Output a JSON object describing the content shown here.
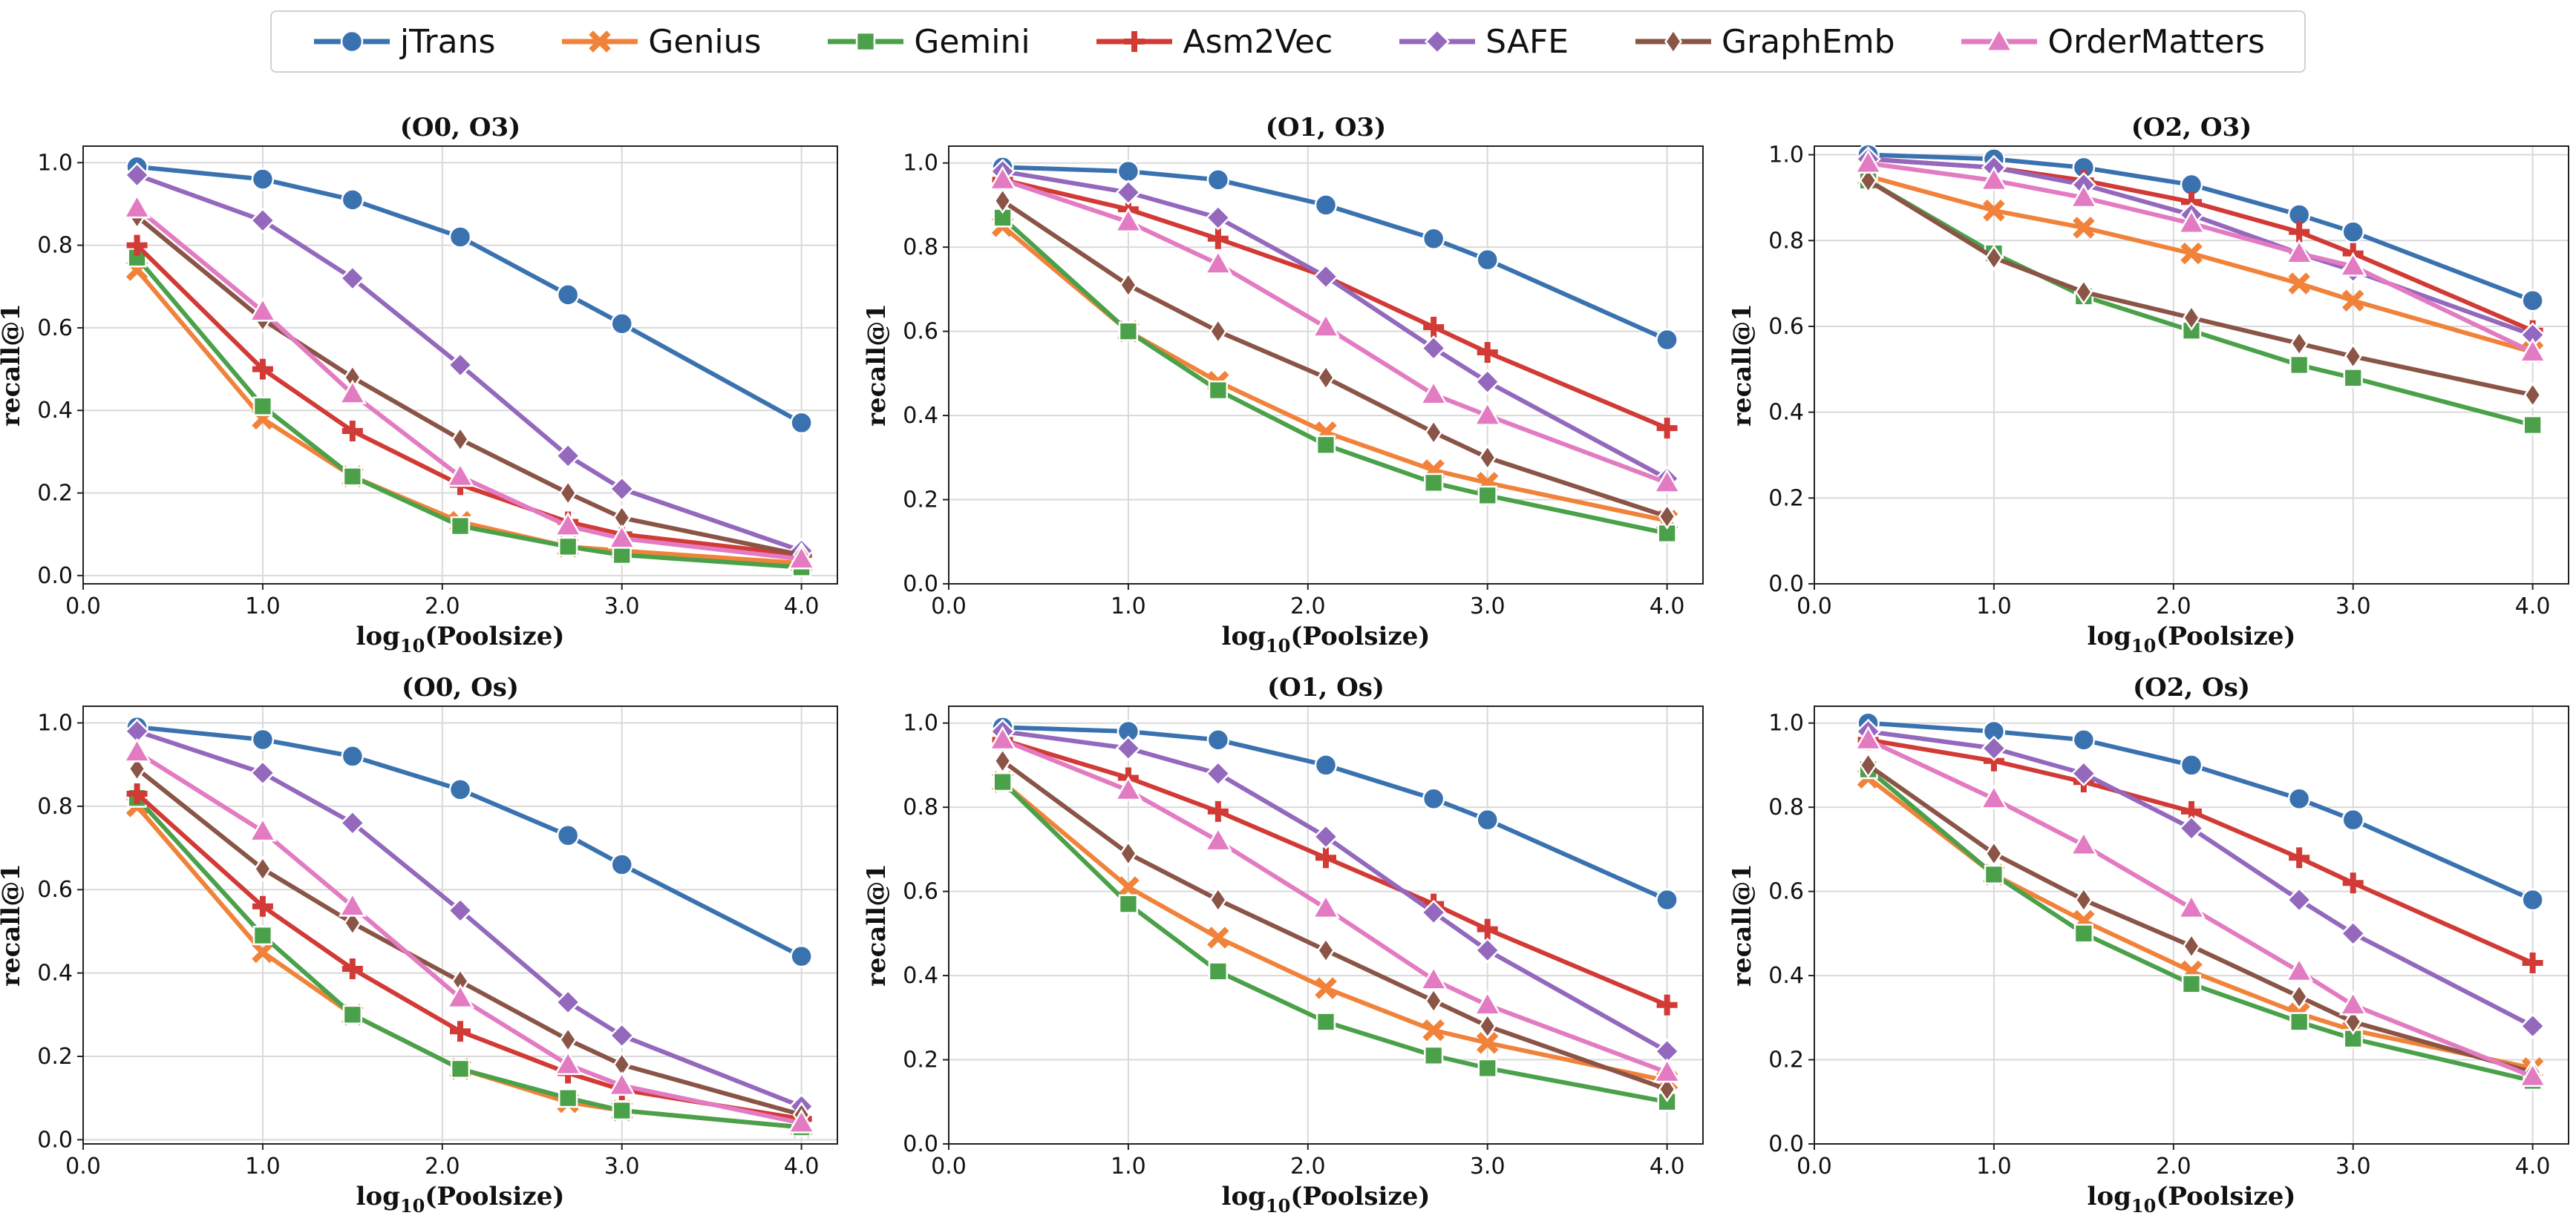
{
  "colors": {
    "jTrans": "#3a72b0",
    "Genius": "#f0823a",
    "Gemini": "#4aa14a",
    "Asm2Vec": "#d23a36",
    "SAFE": "#9468bd",
    "GraphEmb": "#8a5446",
    "OrderMatters": "#e37bc2"
  },
  "legend": [
    {
      "name": "jTrans",
      "marker": "circle"
    },
    {
      "name": "Genius",
      "marker": "x"
    },
    {
      "name": "Gemini",
      "marker": "square"
    },
    {
      "name": "Asm2Vec",
      "marker": "plus"
    },
    {
      "name": "SAFE",
      "marker": "diamond"
    },
    {
      "name": "GraphEmb",
      "marker": "thin_diamond"
    },
    {
      "name": "OrderMatters",
      "marker": "triangle"
    }
  ],
  "chart_data": [
    {
      "type": "line",
      "title": "(O0, O3)",
      "xlabel": "log10(Poolsize)",
      "ylabel": "recall@1",
      "x": [
        0.3,
        1.0,
        1.5,
        2.1,
        2.7,
        3.0,
        4.0
      ],
      "xlim": [
        0.0,
        4.2
      ],
      "ylim": [
        -0.02,
        1.04
      ],
      "xticks": [
        0.0,
        1.0,
        2.0,
        3.0,
        4.0
      ],
      "yticks": [
        0.0,
        0.2,
        0.4,
        0.6,
        0.8,
        1.0
      ],
      "grid": true,
      "series": [
        {
          "name": "jTrans",
          "values": [
            0.99,
            0.96,
            0.91,
            0.82,
            0.68,
            0.61,
            0.37
          ]
        },
        {
          "name": "Genius",
          "values": [
            0.74,
            0.38,
            0.24,
            0.13,
            0.07,
            0.06,
            0.03
          ]
        },
        {
          "name": "Gemini",
          "values": [
            0.77,
            0.41,
            0.24,
            0.12,
            0.07,
            0.05,
            0.02
          ]
        },
        {
          "name": "Asm2Vec",
          "values": [
            0.8,
            0.5,
            0.35,
            0.22,
            0.13,
            0.1,
            0.05
          ]
        },
        {
          "name": "SAFE",
          "values": [
            0.97,
            0.86,
            0.72,
            0.51,
            0.29,
            0.21,
            0.06
          ]
        },
        {
          "name": "GraphEmb",
          "values": [
            0.87,
            0.62,
            0.48,
            0.33,
            0.2,
            0.14,
            0.05
          ]
        },
        {
          "name": "OrderMatters",
          "values": [
            0.89,
            0.64,
            0.44,
            0.24,
            0.12,
            0.09,
            0.04
          ]
        }
      ]
    },
    {
      "type": "line",
      "title": "(O1, O3)",
      "xlabel": "log10(Poolsize)",
      "ylabel": "recall@1",
      "x": [
        0.3,
        1.0,
        1.5,
        2.1,
        2.7,
        3.0,
        4.0
      ],
      "xlim": [
        0.0,
        4.2
      ],
      "ylim": [
        0.0,
        1.04
      ],
      "xticks": [
        0.0,
        1.0,
        2.0,
        3.0,
        4.0
      ],
      "yticks": [
        0.0,
        0.2,
        0.4,
        0.6,
        0.8,
        1.0
      ],
      "grid": true,
      "series": [
        {
          "name": "jTrans",
          "values": [
            0.99,
            0.98,
            0.96,
            0.9,
            0.82,
            0.77,
            0.58
          ]
        },
        {
          "name": "Genius",
          "values": [
            0.85,
            0.6,
            0.48,
            0.36,
            0.27,
            0.24,
            0.15
          ]
        },
        {
          "name": "Gemini",
          "values": [
            0.87,
            0.6,
            0.46,
            0.33,
            0.24,
            0.21,
            0.12
          ]
        },
        {
          "name": "Asm2Vec",
          "values": [
            0.96,
            0.89,
            0.82,
            0.73,
            0.61,
            0.55,
            0.37
          ]
        },
        {
          "name": "SAFE",
          "values": [
            0.98,
            0.93,
            0.87,
            0.73,
            0.56,
            0.48,
            0.25
          ]
        },
        {
          "name": "GraphEmb",
          "values": [
            0.91,
            0.71,
            0.6,
            0.49,
            0.36,
            0.3,
            0.16
          ]
        },
        {
          "name": "OrderMatters",
          "values": [
            0.96,
            0.86,
            0.76,
            0.61,
            0.45,
            0.4,
            0.24
          ]
        }
      ]
    },
    {
      "type": "line",
      "title": "(O2, O3)",
      "xlabel": "log10(Poolsize)",
      "ylabel": "recall@1",
      "x": [
        0.3,
        1.0,
        1.5,
        2.1,
        2.7,
        3.0,
        4.0
      ],
      "xlim": [
        0.0,
        4.2
      ],
      "ylim": [
        0.0,
        1.02
      ],
      "xticks": [
        0.0,
        1.0,
        2.0,
        3.0,
        4.0
      ],
      "yticks": [
        0.0,
        0.2,
        0.4,
        0.6,
        0.8,
        1.0
      ],
      "grid": true,
      "series": [
        {
          "name": "jTrans",
          "values": [
            1.0,
            0.99,
            0.97,
            0.93,
            0.86,
            0.82,
            0.66
          ]
        },
        {
          "name": "Genius",
          "values": [
            0.95,
            0.87,
            0.83,
            0.77,
            0.7,
            0.66,
            0.54
          ]
        },
        {
          "name": "Gemini",
          "values": [
            0.94,
            0.77,
            0.67,
            0.59,
            0.51,
            0.48,
            0.37
          ]
        },
        {
          "name": "Asm2Vec",
          "values": [
            0.99,
            0.97,
            0.94,
            0.89,
            0.82,
            0.77,
            0.59
          ]
        },
        {
          "name": "SAFE",
          "values": [
            0.99,
            0.97,
            0.93,
            0.86,
            0.77,
            0.73,
            0.58
          ]
        },
        {
          "name": "GraphEmb",
          "values": [
            0.94,
            0.76,
            0.68,
            0.62,
            0.56,
            0.53,
            0.44
          ]
        },
        {
          "name": "OrderMatters",
          "values": [
            0.98,
            0.94,
            0.9,
            0.84,
            0.77,
            0.74,
            0.54
          ]
        }
      ]
    },
    {
      "type": "line",
      "title": "(O0, Os)",
      "xlabel": "log10(Poolsize)",
      "ylabel": "recall@1",
      "x": [
        0.3,
        1.0,
        1.5,
        2.1,
        2.7,
        3.0,
        4.0
      ],
      "xlim": [
        0.0,
        4.2
      ],
      "ylim": [
        -0.01,
        1.04
      ],
      "xticks": [
        0.0,
        1.0,
        2.0,
        3.0,
        4.0
      ],
      "yticks": [
        0.0,
        0.2,
        0.4,
        0.6,
        0.8,
        1.0
      ],
      "grid": true,
      "series": [
        {
          "name": "jTrans",
          "values": [
            0.99,
            0.96,
            0.92,
            0.84,
            0.73,
            0.66,
            0.44
          ]
        },
        {
          "name": "Genius",
          "values": [
            0.8,
            0.45,
            0.3,
            0.17,
            0.09,
            0.07,
            0.03
          ]
        },
        {
          "name": "Gemini",
          "values": [
            0.82,
            0.49,
            0.3,
            0.17,
            0.1,
            0.07,
            0.03
          ]
        },
        {
          "name": "Asm2Vec",
          "values": [
            0.83,
            0.56,
            0.41,
            0.26,
            0.16,
            0.12,
            0.05
          ]
        },
        {
          "name": "SAFE",
          "values": [
            0.98,
            0.88,
            0.76,
            0.55,
            0.33,
            0.25,
            0.08
          ]
        },
        {
          "name": "GraphEmb",
          "values": [
            0.89,
            0.65,
            0.52,
            0.38,
            0.24,
            0.18,
            0.06
          ]
        },
        {
          "name": "OrderMatters",
          "values": [
            0.93,
            0.74,
            0.56,
            0.34,
            0.18,
            0.13,
            0.04
          ]
        }
      ]
    },
    {
      "type": "line",
      "title": "(O1, Os)",
      "xlabel": "log10(Poolsize)",
      "ylabel": "recall@1",
      "x": [
        0.3,
        1.0,
        1.5,
        2.1,
        2.7,
        3.0,
        4.0
      ],
      "xlim": [
        0.0,
        4.2
      ],
      "ylim": [
        0.0,
        1.04
      ],
      "xticks": [
        0.0,
        1.0,
        2.0,
        3.0,
        4.0
      ],
      "yticks": [
        0.0,
        0.2,
        0.4,
        0.6,
        0.8,
        1.0
      ],
      "grid": true,
      "series": [
        {
          "name": "jTrans",
          "values": [
            0.99,
            0.98,
            0.96,
            0.9,
            0.82,
            0.77,
            0.58
          ]
        },
        {
          "name": "Genius",
          "values": [
            0.86,
            0.61,
            0.49,
            0.37,
            0.27,
            0.24,
            0.15
          ]
        },
        {
          "name": "Gemini",
          "values": [
            0.86,
            0.57,
            0.41,
            0.29,
            0.21,
            0.18,
            0.1
          ]
        },
        {
          "name": "Asm2Vec",
          "values": [
            0.96,
            0.87,
            0.79,
            0.68,
            0.57,
            0.51,
            0.33
          ]
        },
        {
          "name": "SAFE",
          "values": [
            0.98,
            0.94,
            0.88,
            0.73,
            0.55,
            0.46,
            0.22
          ]
        },
        {
          "name": "GraphEmb",
          "values": [
            0.91,
            0.69,
            0.58,
            0.46,
            0.34,
            0.28,
            0.13
          ]
        },
        {
          "name": "OrderMatters",
          "values": [
            0.96,
            0.84,
            0.72,
            0.56,
            0.39,
            0.33,
            0.17
          ]
        }
      ]
    },
    {
      "type": "line",
      "title": "(O2, Os)",
      "xlabel": "log10(Poolsize)",
      "ylabel": "recall@1",
      "x": [
        0.3,
        1.0,
        1.5,
        2.1,
        2.7,
        3.0,
        4.0
      ],
      "xlim": [
        0.0,
        4.2
      ],
      "ylim": [
        0.0,
        1.04
      ],
      "xticks": [
        0.0,
        1.0,
        2.0,
        3.0,
        4.0
      ],
      "yticks": [
        0.0,
        0.2,
        0.4,
        0.6,
        0.8,
        1.0
      ],
      "grid": true,
      "series": [
        {
          "name": "jTrans",
          "values": [
            1.0,
            0.98,
            0.96,
            0.9,
            0.82,
            0.77,
            0.58
          ]
        },
        {
          "name": "Genius",
          "values": [
            0.87,
            0.64,
            0.53,
            0.41,
            0.31,
            0.27,
            0.18
          ]
        },
        {
          "name": "Gemini",
          "values": [
            0.89,
            0.64,
            0.5,
            0.38,
            0.29,
            0.25,
            0.15
          ]
        },
        {
          "name": "Asm2Vec",
          "values": [
            0.96,
            0.91,
            0.86,
            0.79,
            0.68,
            0.62,
            0.43
          ]
        },
        {
          "name": "SAFE",
          "values": [
            0.98,
            0.94,
            0.88,
            0.75,
            0.58,
            0.5,
            0.28
          ]
        },
        {
          "name": "GraphEmb",
          "values": [
            0.9,
            0.69,
            0.58,
            0.47,
            0.35,
            0.29,
            0.17
          ]
        },
        {
          "name": "OrderMatters",
          "values": [
            0.96,
            0.82,
            0.71,
            0.56,
            0.41,
            0.33,
            0.16
          ]
        }
      ]
    }
  ]
}
